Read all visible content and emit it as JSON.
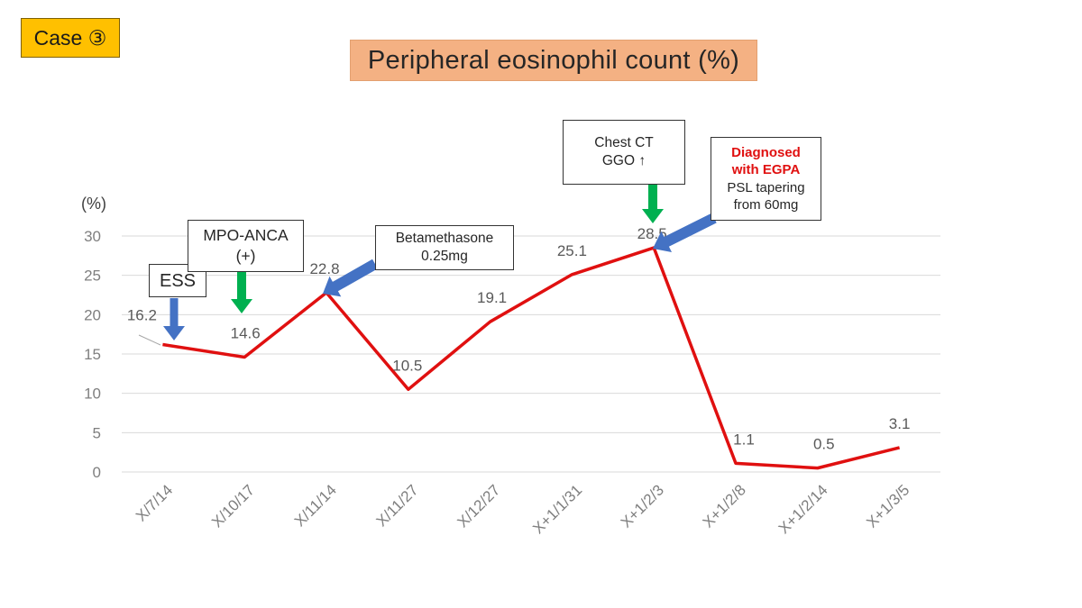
{
  "case_label": "Case ③",
  "chart_data": {
    "type": "line",
    "title": "Peripheral eosinophil count (%)",
    "ylabel": "(%)",
    "xlabel": "",
    "categories": [
      "X/7/14",
      "X/10/17",
      "X/11/14",
      "X/11/27",
      "X/12/27",
      "X+1/1/31",
      "X+1/2/3",
      "X+1/2/8",
      "X+1/2/14",
      "X+1/3/5"
    ],
    "series": [
      {
        "values": [
          16.2,
          14.6,
          22.8,
          10.5,
          19.1,
          25.1,
          28.5,
          1.1,
          0.5,
          3.1
        ],
        "color": "#e01010"
      }
    ],
    "data_labels": [
      "16.2",
      "14.6",
      "22.8",
      "10.5",
      "19.1",
      "25.1",
      "28.5",
      "1.1",
      "0.5",
      "3.1"
    ],
    "ylim": [
      0,
      30
    ],
    "yticks": [
      0,
      5,
      10,
      15,
      20,
      25,
      30
    ],
    "grid": true,
    "legend": "none"
  },
  "annotations": {
    "ess": {
      "text": "ESS",
      "arrow_color": "#4472c4"
    },
    "mpo": {
      "line1": "MPO-ANCA",
      "line2": "(+)",
      "arrow_color": "#00b050"
    },
    "beta": {
      "line1": "Betamethasone",
      "line2": "0.25mg",
      "arrow_color": "#4472c4"
    },
    "ct": {
      "line1": "Chest CT",
      "line2": "GGO ↑",
      "arrow_color": "#00b050"
    },
    "egpa": {
      "line1": "Diagnosed",
      "line2": "with EGPA",
      "line3": "PSL tapering",
      "line4": "from 60mg",
      "arrow_color": "#4472c4"
    }
  },
  "colors": {
    "badge_fill": "#ffc000",
    "title_fill": "#f4b183",
    "line": "#e01010",
    "grid": "#d9d9d9",
    "axis_text": "#7f7f7f"
  }
}
